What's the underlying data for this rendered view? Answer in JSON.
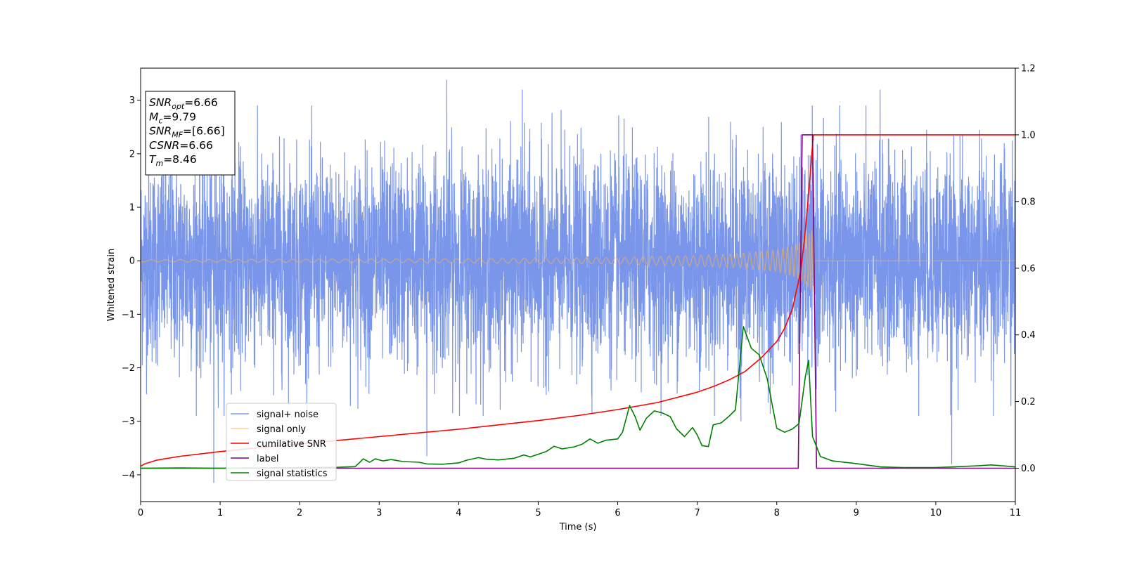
{
  "chart_data": {
    "type": "line",
    "title": "",
    "xlabel": "Time (s)",
    "ylabel": "Whitened strain",
    "xlim": [
      0,
      11
    ],
    "ylim": [
      -4.5,
      3.6
    ],
    "y2lim": [
      -0.1,
      1.2
    ],
    "xticks": [
      "0",
      "1",
      "2",
      "3",
      "4",
      "5",
      "6",
      "7",
      "8",
      "9",
      "10",
      "11"
    ],
    "yticks": [
      "−4",
      "−3",
      "−2",
      "−1",
      "0",
      "1",
      "2",
      "3"
    ],
    "y2ticks": [
      "0.0",
      "0.2",
      "0.4",
      "0.6",
      "0.8",
      "1.0",
      "1.2"
    ],
    "grid": false,
    "legend_position": "lower-left",
    "annotation_box": {
      "position": "top-left",
      "lines": [
        {
          "math": "SNR",
          "sub": "opt",
          "text": "=6.66"
        },
        {
          "math": "M",
          "sub": "c",
          "text": "=9.79"
        },
        {
          "math": "SNR",
          "sub": "MF",
          "text": "=[6.66]"
        },
        {
          "math": "CSNR",
          "sub": "",
          "text": "=6.66"
        },
        {
          "math": "T",
          "sub": "m",
          "text": "=8.46"
        }
      ]
    },
    "series": [
      {
        "name": "signal+ noise",
        "color": "#4169e1",
        "axis": "left",
        "kind": "noise",
        "amplitude_envelope": {
          "typical_range": [
            -2.0,
            2.0
          ],
          "peak_max": 3.38,
          "peak_min": -4.15
        },
        "notable_spikes": [
          [
            0.92,
            -4.15
          ],
          [
            3.85,
            3.38
          ],
          [
            3.6,
            -3.65
          ],
          [
            4.8,
            3.2
          ],
          [
            7.55,
            -3.0
          ],
          [
            9.3,
            3.2
          ],
          [
            10.2,
            -3.8
          ]
        ]
      },
      {
        "name": "signal only",
        "color": "#ffb347",
        "axis": "left",
        "kind": "chirp",
        "envelope": [
          [
            0,
            0.02
          ],
          [
            2,
            0.03
          ],
          [
            4,
            0.04
          ],
          [
            5,
            0.05
          ],
          [
            6,
            0.06
          ],
          [
            6.5,
            0.08
          ],
          [
            7,
            0.1
          ],
          [
            7.5,
            0.13
          ],
          [
            8,
            0.2
          ],
          [
            8.2,
            0.28
          ],
          [
            8.3,
            0.35
          ],
          [
            8.4,
            0.5
          ],
          [
            8.46,
            0.6
          ],
          [
            8.47,
            0
          ],
          [
            11,
            0
          ]
        ]
      },
      {
        "name": "cumilative SNR",
        "color": "#ff0000",
        "axis": "right",
        "points": [
          [
            0,
            0.006
          ],
          [
            0.05,
            0.013
          ],
          [
            0.2,
            0.024
          ],
          [
            0.5,
            0.036
          ],
          [
            1,
            0.05
          ],
          [
            1.5,
            0.062
          ],
          [
            2,
            0.073
          ],
          [
            2.5,
            0.084
          ],
          [
            3,
            0.095
          ],
          [
            3.5,
            0.106
          ],
          [
            4,
            0.117
          ],
          [
            4.5,
            0.13
          ],
          [
            5,
            0.143
          ],
          [
            5.5,
            0.158
          ],
          [
            6,
            0.176
          ],
          [
            6.5,
            0.197
          ],
          [
            7,
            0.228
          ],
          [
            7.2,
            0.245
          ],
          [
            7.4,
            0.265
          ],
          [
            7.6,
            0.29
          ],
          [
            7.8,
            0.33
          ],
          [
            8,
            0.38
          ],
          [
            8.1,
            0.42
          ],
          [
            8.2,
            0.48
          ],
          [
            8.3,
            0.59
          ],
          [
            8.35,
            0.69
          ],
          [
            8.4,
            0.82
          ],
          [
            8.44,
            0.94
          ],
          [
            8.46,
            1.0
          ],
          [
            11,
            1.0
          ]
        ]
      },
      {
        "name": "label",
        "color": "#800080",
        "axis": "right",
        "points": [
          [
            0,
            0.0
          ],
          [
            8.27,
            0.0
          ],
          [
            8.32,
            1.0
          ],
          [
            8.45,
            1.0
          ],
          [
            8.5,
            0.0
          ],
          [
            11,
            0.0
          ]
        ]
      },
      {
        "name": "signal statistics",
        "color": "#008000",
        "axis": "right",
        "points": [
          [
            0,
            0.0
          ],
          [
            0.5,
            0.001
          ],
          [
            1,
            0.0
          ],
          [
            1.5,
            0.001
          ],
          [
            2,
            0.002
          ],
          [
            2.5,
            0.003
          ],
          [
            2.7,
            0.005
          ],
          [
            2.8,
            0.028
          ],
          [
            2.88,
            0.018
          ],
          [
            2.95,
            0.028
          ],
          [
            3.05,
            0.022
          ],
          [
            3.15,
            0.026
          ],
          [
            3.3,
            0.02
          ],
          [
            3.5,
            0.018
          ],
          [
            3.6,
            0.013
          ],
          [
            3.8,
            0.012
          ],
          [
            4,
            0.016
          ],
          [
            4.1,
            0.024
          ],
          [
            4.25,
            0.032
          ],
          [
            4.35,
            0.027
          ],
          [
            4.5,
            0.025
          ],
          [
            4.7,
            0.03
          ],
          [
            4.82,
            0.04
          ],
          [
            4.9,
            0.034
          ],
          [
            5.0,
            0.042
          ],
          [
            5.1,
            0.05
          ],
          [
            5.2,
            0.066
          ],
          [
            5.3,
            0.058
          ],
          [
            5.45,
            0.064
          ],
          [
            5.55,
            0.072
          ],
          [
            5.65,
            0.088
          ],
          [
            5.75,
            0.075
          ],
          [
            5.85,
            0.084
          ],
          [
            6.0,
            0.088
          ],
          [
            6.06,
            0.108
          ],
          [
            6.15,
            0.188
          ],
          [
            6.22,
            0.154
          ],
          [
            6.28,
            0.114
          ],
          [
            6.36,
            0.15
          ],
          [
            6.46,
            0.172
          ],
          [
            6.56,
            0.166
          ],
          [
            6.66,
            0.155
          ],
          [
            6.74,
            0.118
          ],
          [
            6.84,
            0.095
          ],
          [
            6.94,
            0.122
          ],
          [
            7.0,
            0.1
          ],
          [
            7.06,
            0.068
          ],
          [
            7.14,
            0.065
          ],
          [
            7.2,
            0.13
          ],
          [
            7.3,
            0.136
          ],
          [
            7.4,
            0.156
          ],
          [
            7.48,
            0.175
          ],
          [
            7.58,
            0.425
          ],
          [
            7.68,
            0.36
          ],
          [
            7.78,
            0.34
          ],
          [
            7.88,
            0.268
          ],
          [
            8.0,
            0.12
          ],
          [
            8.1,
            0.108
          ],
          [
            8.2,
            0.118
          ],
          [
            8.28,
            0.134
          ],
          [
            8.36,
            0.275
          ],
          [
            8.4,
            0.324
          ],
          [
            8.45,
            0.095
          ],
          [
            8.55,
            0.035
          ],
          [
            8.7,
            0.022
          ],
          [
            9.0,
            0.014
          ],
          [
            9.3,
            0.004
          ],
          [
            9.6,
            0.002
          ],
          [
            10.0,
            0.002
          ],
          [
            10.3,
            0.005
          ],
          [
            10.5,
            0.007
          ],
          [
            10.7,
            0.01
          ],
          [
            11,
            0.004
          ]
        ]
      }
    ]
  }
}
